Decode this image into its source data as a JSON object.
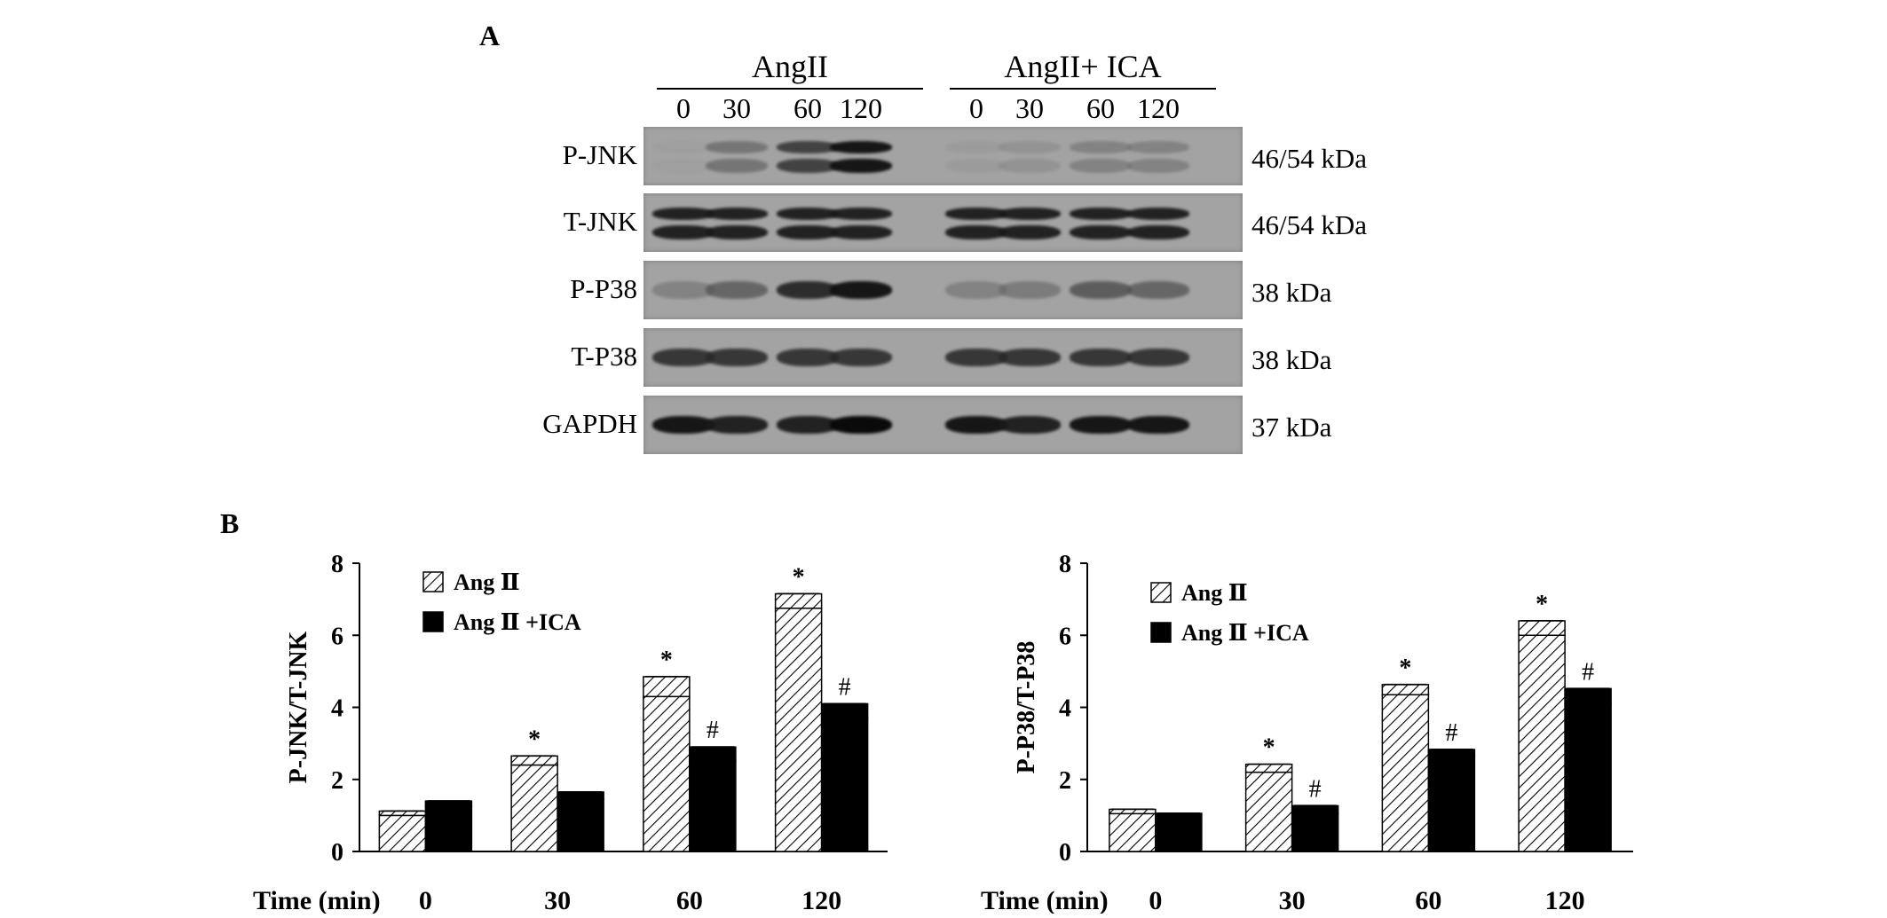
{
  "panel_a": {
    "letter": "A",
    "groups": [
      {
        "label": "AngII",
        "lanes": [
          "0",
          "30",
          "60",
          "120"
        ]
      },
      {
        "label": "AngII+ ICA",
        "lanes": [
          "0",
          "30",
          "60",
          "120"
        ]
      }
    ],
    "rows": [
      {
        "label": "P-JNK",
        "kda": "46/54 kDa",
        "intensity": [
          0.05,
          0.45,
          0.75,
          0.95,
          0.1,
          0.2,
          0.35,
          0.35
        ]
      },
      {
        "label": "T-JNK",
        "kda": "46/54 kDa",
        "intensity": [
          0.9,
          0.9,
          0.9,
          0.9,
          0.9,
          0.9,
          0.9,
          0.9
        ]
      },
      {
        "label": "P-P38",
        "kda": "38 kDa",
        "intensity": [
          0.35,
          0.55,
          0.85,
          0.95,
          0.35,
          0.4,
          0.6,
          0.55
        ]
      },
      {
        "label": "T-P38",
        "kda": "38 kDa",
        "intensity": [
          0.8,
          0.8,
          0.8,
          0.8,
          0.8,
          0.8,
          0.8,
          0.8
        ]
      },
      {
        "label": "GAPDH",
        "kda": "37 kDa",
        "intensity": [
          0.95,
          0.9,
          0.9,
          1.0,
          0.95,
          0.9,
          0.95,
          0.95
        ]
      }
    ]
  },
  "panel_b": {
    "letter": "B"
  },
  "chart_data": [
    {
      "type": "bar",
      "ylabel": "P-JNK/T-JNK",
      "xlabel": "Time (min)",
      "categories": [
        "0",
        "30",
        "60",
        "120"
      ],
      "ylim": [
        0,
        8
      ],
      "yticks": [
        "0",
        "2",
        "4",
        "6",
        "8"
      ],
      "series": [
        {
          "name": "Ang Ⅱ",
          "values": [
            1.0,
            2.4,
            4.3,
            6.75
          ],
          "errors": [
            0.12,
            0.25,
            0.55,
            0.4
          ],
          "marks": [
            "",
            "*",
            "*",
            "*"
          ],
          "fill": "hatch"
        },
        {
          "name": "Ang Ⅱ +ICA",
          "values": [
            1.25,
            1.45,
            2.5,
            3.7
          ],
          "errors": [
            0.15,
            0.2,
            0.4,
            0.4
          ],
          "marks": [
            "",
            "",
            "#",
            "#"
          ],
          "fill": "#000000"
        }
      ]
    },
    {
      "type": "bar",
      "ylabel": "P-P38/T-P38",
      "xlabel": "Time (min)",
      "categories": [
        "0",
        "30",
        "60",
        "120"
      ],
      "ylim": [
        0,
        8
      ],
      "yticks": [
        "0",
        "2",
        "4",
        "6",
        "8"
      ],
      "series": [
        {
          "name": "Ang Ⅱ",
          "values": [
            1.05,
            2.2,
            4.35,
            6.0
          ],
          "errors": [
            0.12,
            0.22,
            0.28,
            0.4
          ],
          "marks": [
            "",
            "*",
            "*",
            "*"
          ],
          "fill": "hatch"
        },
        {
          "name": "Ang Ⅱ +ICA",
          "values": [
            1.0,
            1.05,
            2.65,
            4.1
          ],
          "errors": [
            0.06,
            0.22,
            0.18,
            0.42
          ],
          "marks": [
            "",
            "#",
            "#",
            "#"
          ],
          "fill": "#000000"
        }
      ]
    }
  ]
}
